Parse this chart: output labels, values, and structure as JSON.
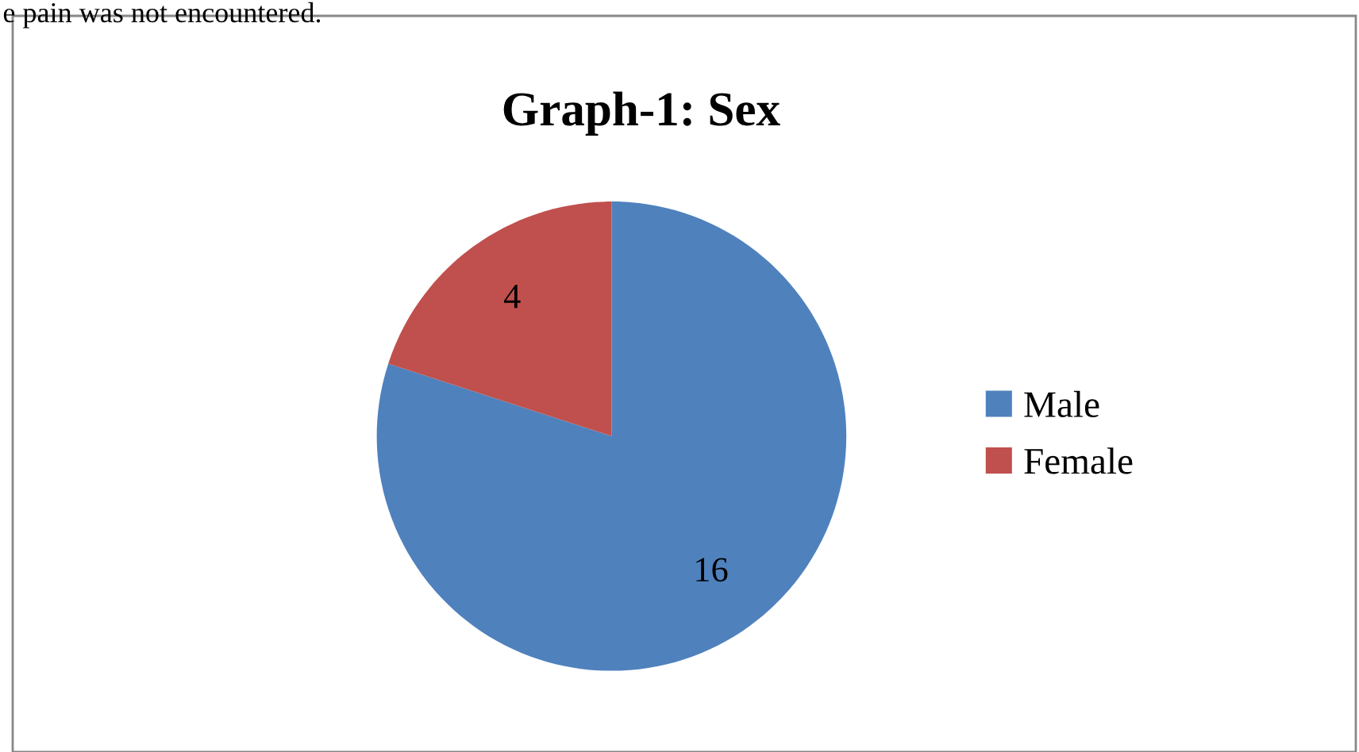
{
  "chart_data": {
    "type": "pie",
    "title": "Graph-1: Sex",
    "categories": [
      "Male",
      "Female"
    ],
    "values": [
      16,
      4
    ],
    "colors": [
      "#4f81bd",
      "#c0504d"
    ],
    "data_labels": true,
    "legend": "right",
    "annotations": [
      "e pain was not encountered."
    ]
  }
}
